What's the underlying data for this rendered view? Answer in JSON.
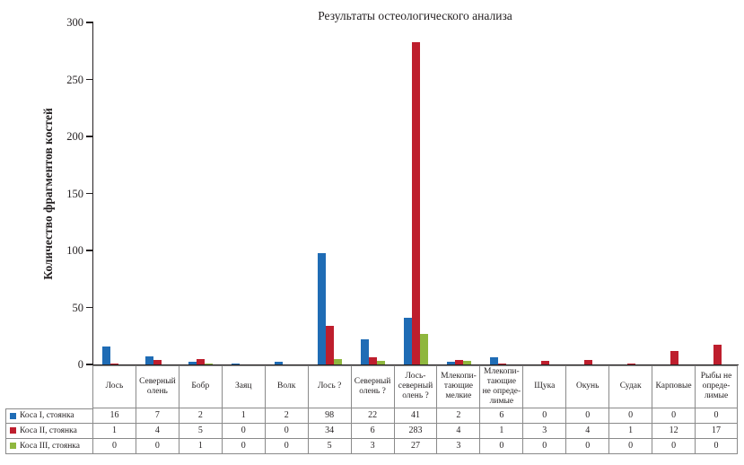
{
  "chart_data": {
    "type": "bar",
    "title": "Результаты остеологического анализа",
    "xlabel": "",
    "ylabel": "Количество фрагментов костей",
    "ylim": [
      0,
      300
    ],
    "y_ticks": [
      0,
      50,
      100,
      150,
      200,
      250,
      300
    ],
    "grid": false,
    "legend_position": "table-left",
    "categories": [
      "Лось",
      "Северный\nолень",
      "Бобр",
      "Заяц",
      "Волк",
      "Лось ?",
      "Северный\nолень ?",
      "Лось-\nсеверный\nолень ?",
      "Млекопи-\nтающие\nмелкие",
      "Млекопи-\nтающие\nне опреде-\nлимые",
      "Щука",
      "Окунь",
      "Судак",
      "Карповые",
      "Рыбы не\nопреде-\nлимые"
    ],
    "series": [
      {
        "name": "Коса I, стоянка",
        "color": "#1f6cb5",
        "values": [
          16,
          7,
          2,
          1,
          2,
          98,
          22,
          41,
          2,
          6,
          0,
          0,
          0,
          0,
          0
        ]
      },
      {
        "name": "Коса II, стоянка",
        "color": "#be1e2d",
        "values": [
          1,
          4,
          5,
          0,
          0,
          34,
          6,
          283,
          4,
          1,
          3,
          4,
          1,
          12,
          17
        ]
      },
      {
        "name": "Коса III, стоянка",
        "color": "#8fb73e",
        "values": [
          0,
          0,
          1,
          0,
          0,
          5,
          3,
          27,
          3,
          0,
          0,
          0,
          0,
          0,
          0
        ]
      }
    ]
  }
}
